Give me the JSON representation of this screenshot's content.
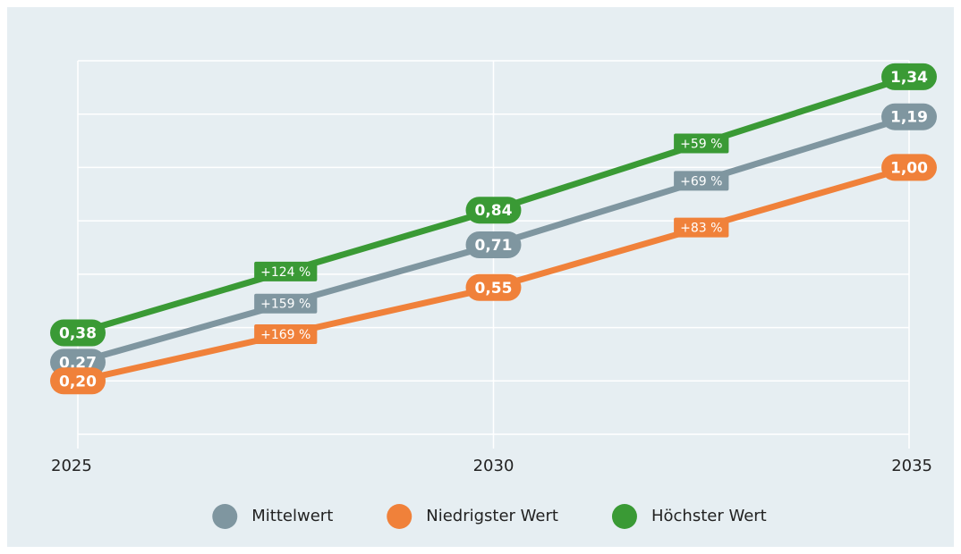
{
  "chart_data": {
    "type": "line",
    "x": [
      2025,
      2030,
      2035
    ],
    "xlim": [
      2025,
      2035
    ],
    "xticks": [
      2025,
      2030,
      2035
    ],
    "ylim": [
      0,
      1.4
    ],
    "yticks": [
      0,
      0.2,
      0.4,
      0.6,
      0.8,
      1.0,
      1.2,
      1.4
    ],
    "grid": true,
    "legend": "bottom",
    "series": [
      {
        "name": "Mittelwert",
        "color": "#7f96a0",
        "values": [
          0.27,
          0.71,
          1.19
        ],
        "value_labels": [
          "0,27",
          "0,71",
          "1,19"
        ],
        "growth_labels": [
          "+159 %",
          "+69 %"
        ]
      },
      {
        "name": "Niedrigster Wert",
        "color": "#f0813a",
        "values": [
          0.2,
          0.55,
          1.0
        ],
        "value_labels": [
          "0,20",
          "0,55",
          "1,00"
        ],
        "growth_labels": [
          "+169 %",
          "+83 %"
        ]
      },
      {
        "name": "Höchster Wert",
        "color": "#3a9a35",
        "values": [
          0.38,
          0.84,
          1.34
        ],
        "value_labels": [
          "0,38",
          "0,84",
          "1,34"
        ],
        "growth_labels": [
          "+124 %",
          "+59 %"
        ]
      }
    ]
  }
}
